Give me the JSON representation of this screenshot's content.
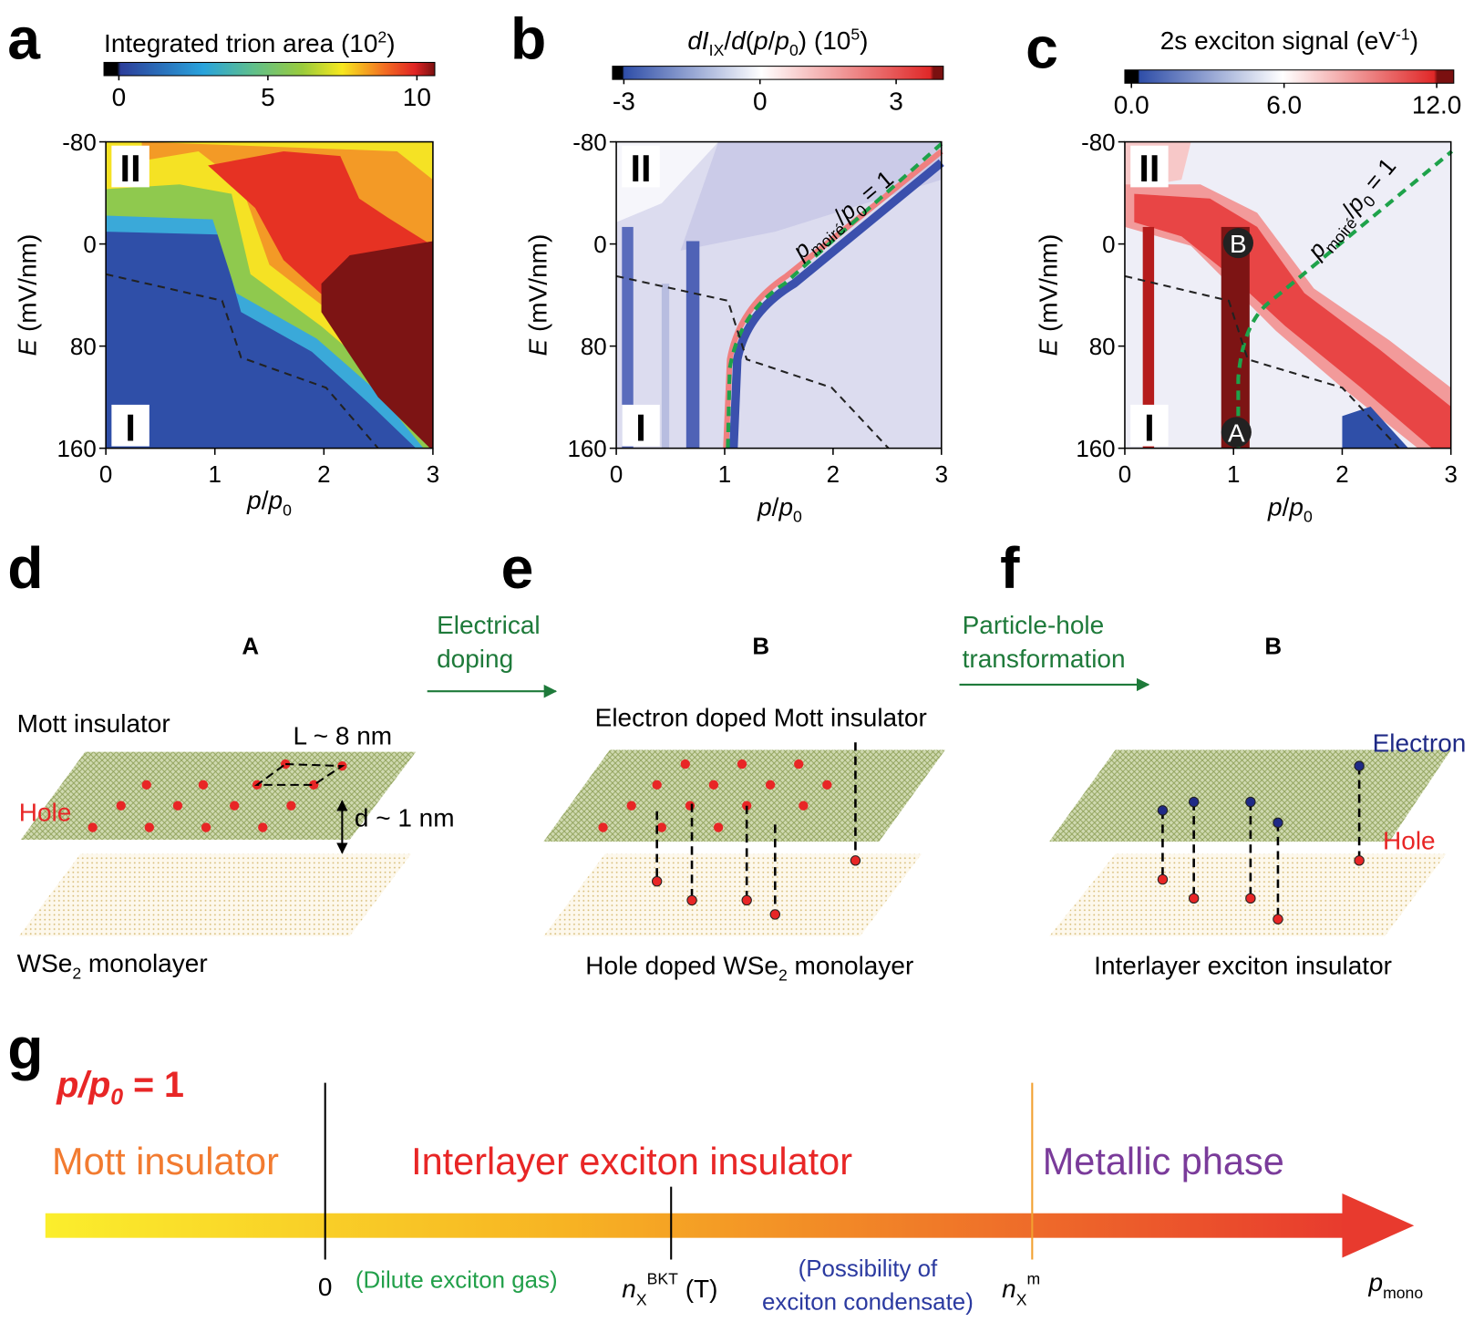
{
  "panel_a": {
    "letter": "a",
    "colorbar": {
      "label": [
        "Integrated trion area (10",
        "2",
        ")"
      ],
      "range": [
        -0.5,
        10.6
      ],
      "ticks": [
        0,
        5,
        10
      ]
    },
    "axes": {
      "xlim": [
        0,
        3
      ],
      "xticks": [
        0,
        1,
        2,
        3
      ],
      "ylim": [
        -80,
        160
      ],
      "yticks": [
        -80,
        0,
        80,
        160
      ],
      "x_label": [
        "p",
        "/",
        "p",
        "0"
      ],
      "y_label": [
        "E",
        " (mV/nm)"
      ]
    },
    "regions": [
      "II",
      "I"
    ]
  },
  "panel_b": {
    "letter": "b",
    "colorbar": {
      "label": [
        "d",
        "I",
        "IX",
        "/",
        "d",
        "(",
        "p",
        "/",
        "p",
        "0",
        ") (10",
        "5",
        ")"
      ],
      "range": [
        -3.25,
        4.04
      ],
      "ticks": [
        -3,
        0,
        3
      ]
    },
    "axes": {
      "xlim": [
        0,
        3
      ],
      "xticks": [
        0,
        1,
        2,
        3
      ],
      "ylim": [
        -80,
        160
      ],
      "yticks": [
        -80,
        0,
        80,
        160
      ],
      "x_label": [
        "p",
        "/",
        "p",
        "0"
      ],
      "y_label": [
        "E",
        " (mV/nm)"
      ]
    },
    "regions": [
      "II",
      "I"
    ],
    "annotation": [
      "p",
      "moiré",
      "/",
      "p",
      "0",
      " = 1"
    ]
  },
  "panel_c": {
    "letter": "c",
    "colorbar": {
      "label": [
        "2s exciton signal (eV",
        "-1",
        ")"
      ],
      "range": [
        -0.26,
        12.67
      ],
      "ticks": [
        {
          "value": 0,
          "label": "0.0"
        },
        {
          "value": 6,
          "label": "6.0"
        },
        {
          "value": 12,
          "label": "12.0"
        }
      ]
    },
    "axes": {
      "xlim": [
        0,
        3
      ],
      "xticks": [
        0,
        1,
        2,
        3
      ],
      "ylim": [
        -80,
        160
      ],
      "yticks": [
        -80,
        0,
        80,
        160
      ],
      "x_label": [
        "p",
        "/",
        "p",
        "0"
      ],
      "y_label": [
        "E",
        " (mV/nm)"
      ]
    },
    "regions": [
      "II",
      "I"
    ],
    "annotation": [
      "p",
      "moiré",
      "/",
      "p",
      "0",
      " = 1"
    ],
    "points": [
      "A",
      "B"
    ]
  },
  "panel_d": {
    "letter": "d",
    "state": "A",
    "top_layer": "Mott insulator",
    "period": "L ~ 8 nm",
    "particle": "Hole",
    "spacing": "d ~ 1 nm",
    "bottom_layer": [
      "WSe",
      "2",
      " monolayer"
    ]
  },
  "transition_1": [
    "Electrical",
    "doping"
  ],
  "panel_e": {
    "letter": "e",
    "state": "B",
    "top_layer": "Electron doped Mott insulator",
    "bottom_layer": [
      "Hole doped WSe",
      "2",
      " monolayer"
    ]
  },
  "transition_2": [
    "Particle-hole",
    "transformation"
  ],
  "panel_f": {
    "letter": "f",
    "state": "B",
    "electron": "Electron",
    "hole": "Hole",
    "caption": "Interlayer exciton insulator"
  },
  "panel_g": {
    "letter": "g",
    "condition": [
      "p",
      "/",
      "p",
      "0",
      " = 1"
    ],
    "phases": [
      "Mott insulator",
      "Interlayer exciton insulator",
      "Metallic phase"
    ],
    "marks": {
      "zero": "0",
      "dilute": "(Dilute exciton gas)",
      "bkt": [
        "n",
        "X",
        "BKT",
        " (T)"
      ],
      "condensate": [
        "(Possibility of",
        "exciton condensate)"
      ],
      "nm": [
        "n",
        "X",
        "m"
      ],
      "axis": [
        "p",
        "mono"
      ]
    }
  }
}
